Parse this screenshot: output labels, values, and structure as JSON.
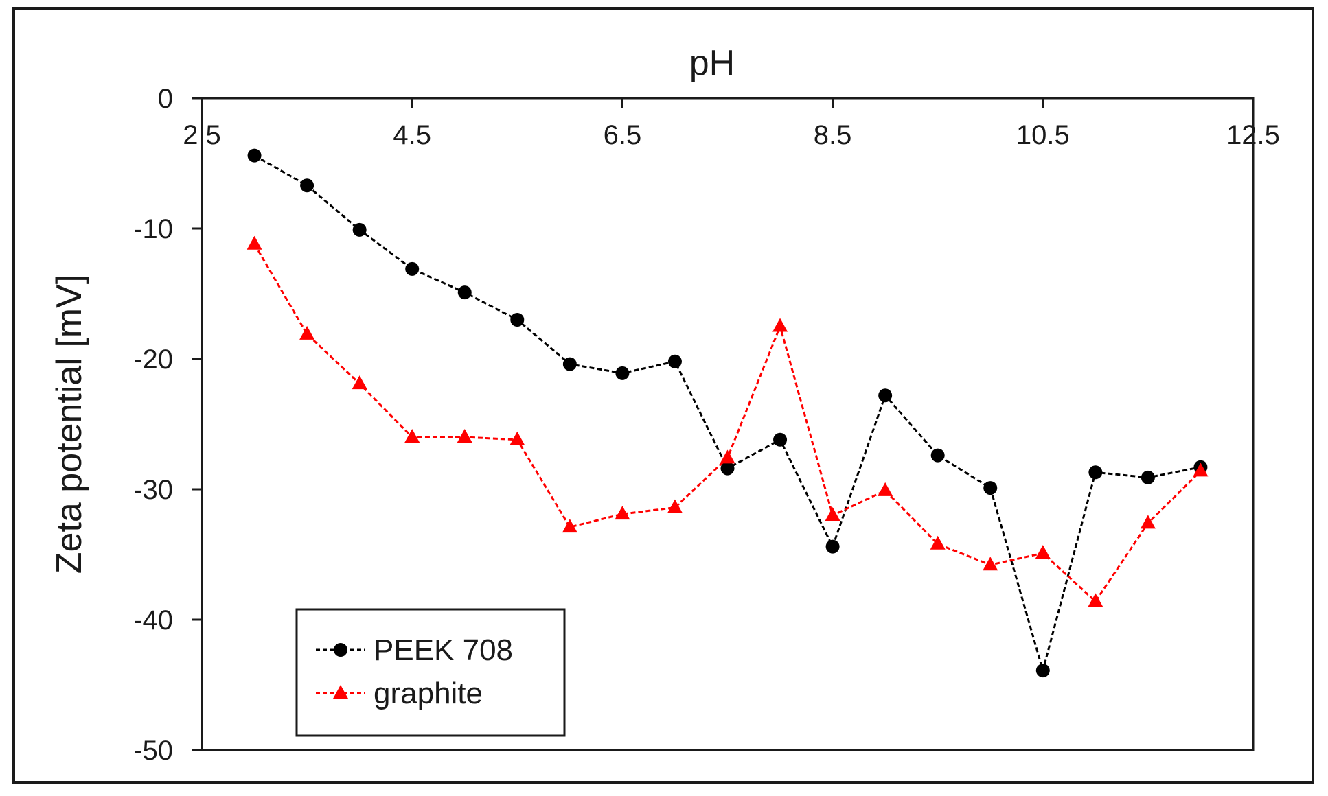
{
  "chart_data": {
    "type": "line",
    "title": "",
    "xlabel": "pH",
    "ylabel": "Zeta potential [mV]",
    "xlim": [
      2.5,
      12.5
    ],
    "ylim": [
      -50,
      0
    ],
    "x_ticks": [
      "2.5",
      "4.5",
      "6.5",
      "8.5",
      "10.5",
      "12.5"
    ],
    "y_ticks": [
      "0",
      "-10",
      "-20",
      "-30",
      "-40",
      "-50"
    ],
    "x_tick_values": [
      2.5,
      4.5,
      6.5,
      8.5,
      10.5,
      12.5
    ],
    "y_tick_values": [
      0,
      -10,
      -20,
      -30,
      -40,
      -50
    ],
    "grid": false,
    "legend_position": "bottom-left",
    "x_axis_position": "top",
    "series": [
      {
        "name": "PEEK 708",
        "color": "#000000",
        "marker": "circle",
        "line_style": "dashed",
        "x": [
          3.0,
          3.5,
          4.0,
          4.5,
          5.0,
          5.5,
          6.0,
          6.5,
          7.0,
          7.5,
          8.0,
          8.5,
          9.0,
          9.5,
          10.0,
          10.5,
          11.0,
          11.5,
          12.0
        ],
        "y": [
          -4.4,
          -6.7,
          -10.1,
          -13.1,
          -14.9,
          -17.0,
          -20.4,
          -21.1,
          -20.2,
          -28.4,
          -26.2,
          -34.4,
          -22.8,
          -27.4,
          -29.9,
          -43.9,
          -28.7,
          -29.1,
          -28.3
        ]
      },
      {
        "name": "graphite",
        "color": "#ff0000",
        "marker": "triangle",
        "line_style": "dashed",
        "x": [
          3.0,
          3.5,
          4.0,
          4.5,
          5.0,
          5.5,
          6.0,
          6.5,
          7.0,
          7.5,
          8.0,
          8.5,
          9.0,
          9.5,
          10.0,
          10.5,
          11.0,
          11.5,
          12.0
        ],
        "y": [
          -11.2,
          -18.1,
          -21.9,
          -26.0,
          -26.0,
          -26.2,
          -32.9,
          -31.9,
          -31.4,
          -27.6,
          -17.5,
          -32.0,
          -30.1,
          -34.2,
          -35.8,
          -34.9,
          -38.6,
          -32.6,
          -28.6
        ]
      }
    ]
  }
}
